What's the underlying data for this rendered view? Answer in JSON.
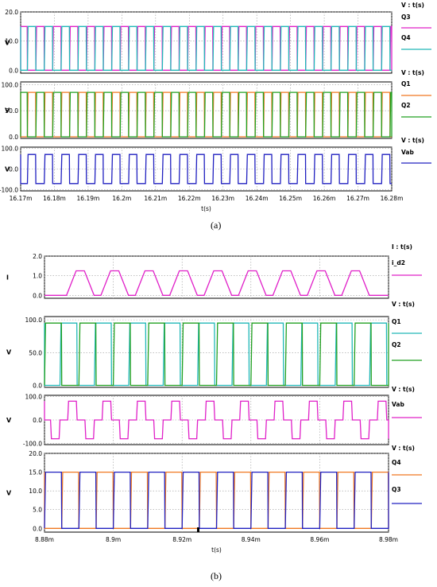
{
  "figure": {
    "caption_a": "(a)",
    "caption_b": "(b)"
  },
  "chart_data": [
    {
      "id": "a1",
      "type": "line",
      "figure_part": "(a)",
      "header": "V : t(s)",
      "ylabel": "V",
      "x": [
        16.17,
        16.28
      ],
      "ylim": [
        -1,
        20
      ],
      "yticks": [
        "0.0",
        "10.0",
        "20.0"
      ],
      "ytick_values": [
        0,
        10,
        20
      ],
      "grid": true,
      "waveform": {
        "period": 0.005,
        "t0": 16.172,
        "high": 15,
        "low": 0
      },
      "series": [
        {
          "name": "Q3",
          "color": "#e020c8",
          "phase": 0.5
        },
        {
          "name": "Q4",
          "color": "#20b8b8",
          "phase": 0.0
        }
      ]
    },
    {
      "id": "a2",
      "type": "line",
      "figure_part": "(a)",
      "header": "V : t(s)",
      "ylabel": "V",
      "x": [
        16.17,
        16.28
      ],
      "ylim": [
        -3,
        105
      ],
      "yticks": [
        "0.0",
        "50.0",
        "100.0"
      ],
      "ytick_values": [
        0,
        50,
        100
      ],
      "grid": true,
      "waveform": {
        "period": 0.005,
        "t0": 16.172,
        "high": 85,
        "low": 0
      },
      "series": [
        {
          "name": "Q1",
          "color": "#f07820",
          "phase": 0.0
        },
        {
          "name": "Q2",
          "color": "#20a020",
          "phase": 0.5
        }
      ]
    },
    {
      "id": "a3",
      "type": "line",
      "figure_part": "(a)",
      "header": "V : t(s)",
      "ylabel": "V",
      "x": [
        16.17,
        16.28
      ],
      "ylim": [
        -105,
        105
      ],
      "yticks": [
        "-100.0",
        "0.0",
        "100.0"
      ],
      "ytick_values": [
        -100,
        0,
        100
      ],
      "grid": true,
      "waveform": {
        "period": 0.005,
        "t0": 16.172,
        "high": 70,
        "low": -70
      },
      "series": [
        {
          "name": "Vab",
          "color": "#2020c0",
          "phase": 0.0
        }
      ],
      "xlabel": "t(s)",
      "xticks": [
        "16.17m",
        "16.18m",
        "16.19m",
        "16.2m",
        "16.21m",
        "16.22m",
        "16.23m",
        "16.24m",
        "16.25m",
        "16.26m",
        "16.27m",
        "16.28m"
      ]
    },
    {
      "id": "b1",
      "type": "line",
      "figure_part": "(b)",
      "header": "I : t(s)",
      "ylabel": "I",
      "x": [
        8.88,
        8.98
      ],
      "ylim": [
        -0.15,
        2.0
      ],
      "yticks": [
        "0.0",
        "1.0",
        "2.0"
      ],
      "ytick_values": [
        0,
        1,
        2
      ],
      "grid": true,
      "pulses": {
        "peak": 1.25,
        "width_ms": 0.004,
        "centers": [
          8.8904,
          8.9004,
          8.9104,
          8.9204,
          8.9304,
          8.9404,
          8.9504,
          8.9604,
          8.9704
        ]
      },
      "series": [
        {
          "name": "i_d2",
          "color": "#e020c8"
        }
      ]
    },
    {
      "id": "b2",
      "type": "line",
      "figure_part": "(b)",
      "header": "V : t(s)",
      "ylabel": "V",
      "x": [
        8.88,
        8.98
      ],
      "ylim": [
        -3,
        105
      ],
      "yticks": [
        "0.0",
        "50.0",
        "100.0"
      ],
      "ytick_values": [
        0,
        50,
        100
      ],
      "grid": true,
      "waveform": {
        "period": 0.01,
        "t0": 8.88,
        "high": 95,
        "low": 0
      },
      "series": [
        {
          "name": "Q1",
          "color": "#20b8b8",
          "phase": 0.45
        },
        {
          "name": "Q2",
          "color": "#20a020",
          "phase": 0.0
        }
      ]
    },
    {
      "id": "b3",
      "type": "line",
      "figure_part": "(b)",
      "header": "V : t(s)",
      "ylabel": "V",
      "x": [
        8.88,
        8.98
      ],
      "ylim": [
        -105,
        105
      ],
      "yticks": [
        "-100.0",
        "0.0",
        "100.0"
      ],
      "ytick_values": [
        -100,
        0,
        100
      ],
      "grid": true,
      "levels": [
        0,
        80,
        80,
        0,
        0,
        -80,
        -80,
        0
      ],
      "level_period": 0.01,
      "series": [
        {
          "name": "Vab",
          "color": "#e020c8"
        }
      ]
    },
    {
      "id": "b4",
      "type": "line",
      "figure_part": "(b)",
      "header": "V : t(s)",
      "ylabel": "V",
      "x": [
        8.88,
        8.98
      ],
      "ylim": [
        -1,
        20
      ],
      "yticks": [
        "0.0",
        "5.0",
        "10.0",
        "15.0",
        "20.0"
      ],
      "ytick_values": [
        0,
        5,
        10,
        15,
        20
      ],
      "grid": true,
      "waveform": {
        "period": 0.01,
        "t0": 8.88,
        "high": 15,
        "low": 0
      },
      "series": [
        {
          "name": "Q4",
          "color": "#f07820",
          "phase": 0.5
        },
        {
          "name": "Q3",
          "color": "#2020c0",
          "phase": 0.0
        }
      ],
      "xlabel": "t(s)",
      "xticks": [
        "8.88m",
        "8.9m",
        "8.92m",
        "8.94m",
        "8.96m",
        "8.98m"
      ]
    }
  ]
}
